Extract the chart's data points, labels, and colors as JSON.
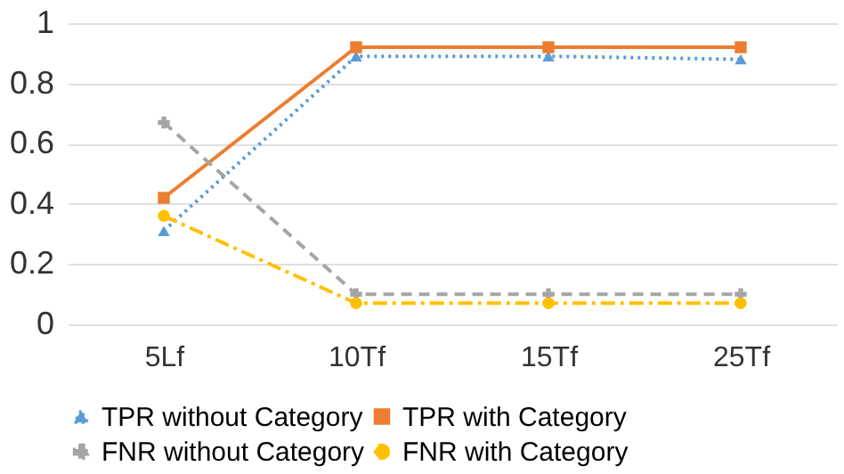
{
  "chart_data": {
    "type": "line",
    "categories": [
      "5Lf",
      "10Tf",
      "15Tf",
      "25Tf"
    ],
    "series": [
      {
        "name": "TPR without Category",
        "color": "#5b9bd5",
        "marker": "triangle",
        "line_style": "dotted",
        "values": [
          0.31,
          0.89,
          0.89,
          0.88
        ]
      },
      {
        "name": "TPR with Category",
        "color": "#ed7d31",
        "marker": "square",
        "line_style": "solid",
        "values": [
          0.42,
          0.92,
          0.92,
          0.92
        ]
      },
      {
        "name": "FNR without Category",
        "color": "#a5a5a5",
        "marker": "cross",
        "line_style": "dashed",
        "values": [
          0.67,
          0.1,
          0.1,
          0.1
        ]
      },
      {
        "name": "FNR with Category",
        "color": "#ffc000",
        "marker": "circle",
        "line_style": "dashdot",
        "values": [
          0.36,
          0.07,
          0.07,
          0.07
        ]
      }
    ],
    "ylim": [
      0,
      1
    ],
    "yticks": [
      0,
      0.2,
      0.4,
      0.6,
      0.8,
      1
    ],
    "grid": "y",
    "legend": "bottom"
  }
}
